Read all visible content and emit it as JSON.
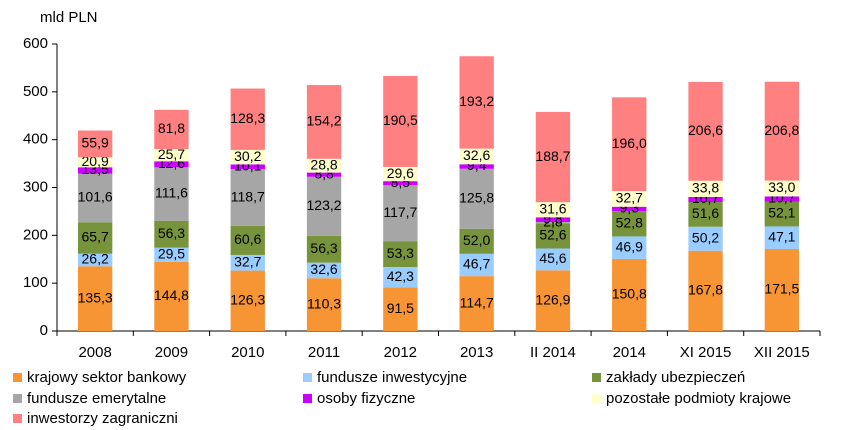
{
  "chart_data": {
    "type": "stacked_bar",
    "y_label": "mld PLN",
    "categories": [
      "2008",
      "2009",
      "2010",
      "2011",
      "2012",
      "2013",
      "II 2014",
      "2014",
      "XI 2015",
      "XII 2015"
    ],
    "ylim": [
      0,
      600
    ],
    "yticks": [
      0,
      100,
      200,
      300,
      400,
      500,
      600
    ],
    "series": [
      {
        "name": "krajowy sektor bankowy",
        "color": "#f79433",
        "values": [
          135.3,
          144.8,
          126.3,
          110.3,
          91.5,
          114.7,
          126.9,
          150.8,
          167.8,
          171.5
        ],
        "value_labels": [
          "135,3",
          "144,8",
          "126,3",
          "110,3",
          "91,5",
          "114,7",
          "126,9",
          "150,8",
          "167,8",
          "171,5"
        ]
      },
      {
        "name": "fundusze inwestycyjne",
        "color": "#99ccff",
        "values": [
          26.2,
          29.5,
          32.7,
          32.6,
          42.3,
          46.7,
          45.6,
          46.9,
          50.2,
          47.1
        ],
        "value_labels": [
          "26,2",
          "29,5",
          "32,7",
          "32,6",
          "42,3",
          "46,7",
          "45,6",
          "46,9",
          "50,2",
          "47,1"
        ]
      },
      {
        "name": "zakłady ubezpieczeń",
        "color": "#77933c",
        "values": [
          65.7,
          56.3,
          60.6,
          56.3,
          53.3,
          52.0,
          52.6,
          52.8,
          51.6,
          52.1
        ],
        "value_labels": [
          "65,7",
          "56,3",
          "60,6",
          "56,3",
          "53,3",
          "52,0",
          "52,6",
          "52,8",
          "51,6",
          "52,1"
        ]
      },
      {
        "name": "fundusze emerytalne",
        "color": "#a6a6a6",
        "values": [
          101.6,
          111.6,
          118.7,
          123.2,
          117.7,
          125.8,
          2.8,
          null,
          null,
          null
        ],
        "value_labels": [
          "101,6",
          "111,6",
          "118,7",
          "123,2",
          "117,7",
          "125,8",
          "2,8",
          null,
          null,
          null
        ]
      },
      {
        "name": "osoby fizyczne",
        "color": "#cc00ff",
        "values": [
          13.5,
          12.6,
          10.1,
          8.8,
          8.5,
          9.4,
          9.8,
          9.3,
          10.7,
          10.7
        ],
        "value_labels": [
          "13,5",
          "12,6",
          "10,1",
          "8,8",
          "8,5",
          "9,4",
          "9,8",
          "9,3",
          "10,7",
          "10,7"
        ]
      },
      {
        "name": "pozostałe podmioty krajowe",
        "color": "#ffffcc",
        "values": [
          20.9,
          25.7,
          30.2,
          28.8,
          29.6,
          32.6,
          31.6,
          32.7,
          33.8,
          33.0
        ],
        "value_labels": [
          "20,9",
          "25,7",
          "30,2",
          "28,8",
          "29,6",
          "32,6",
          "31,6",
          "32,7",
          "33,8",
          "33,0"
        ]
      },
      {
        "name": "inwestorzy zagraniczni",
        "color": "#ff8080",
        "values": [
          55.9,
          81.8,
          128.3,
          154.2,
          190.5,
          193.2,
          188.7,
          196.0,
          206.6,
          206.8
        ],
        "value_labels": [
          "55,9",
          "81,8",
          "128,3",
          "154,2",
          "190,5",
          "193,2",
          "188,7",
          "196,0",
          "206,6",
          "206,8"
        ]
      }
    ]
  }
}
